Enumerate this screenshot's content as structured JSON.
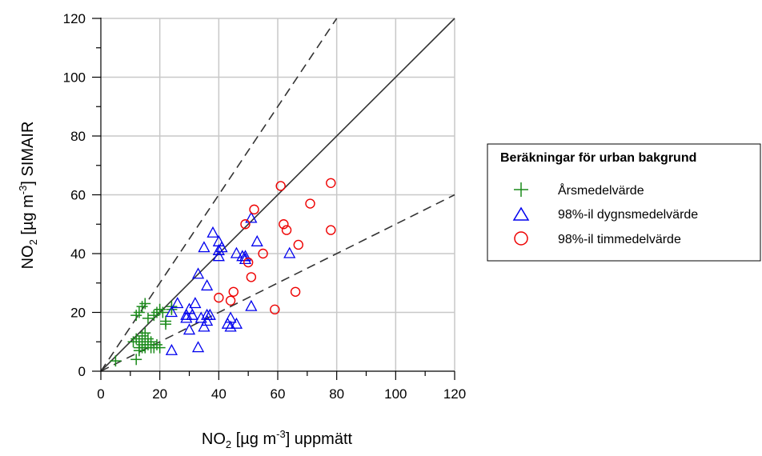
{
  "chart_data": {
    "type": "scatter",
    "xlabel": {
      "main": "NO",
      "sub": "2",
      "unit_pre": " [µg m",
      "sup": "-3",
      "unit_post": "] uppmätt"
    },
    "ylabel": {
      "main": "NO",
      "sub": "2",
      "unit_pre": " [µg m",
      "sup": "-3",
      "unit_post": "] SIMAIR"
    },
    "xlim": [
      0,
      120
    ],
    "ylim": [
      0,
      120
    ],
    "xticks": [
      "0",
      "20",
      "40",
      "60",
      "80",
      "100",
      "120"
    ],
    "yticks": [
      "0",
      "20",
      "40",
      "60",
      "80",
      "100",
      "120"
    ],
    "grid": true,
    "reference_lines": [
      {
        "style": "solid",
        "slope": 1
      },
      {
        "style": "dashed",
        "slope": 1.5
      },
      {
        "style": "dashed",
        "slope": 0.5
      }
    ],
    "legend": {
      "title": "Beräkningar för urban bakgrund",
      "placement": "right",
      "entries": [
        "Årsmedelvärde",
        "98%-il dygnsmedelvärde",
        "98%-il timmedelvärde"
      ]
    },
    "series": [
      {
        "name": "Årsmedelvärde",
        "marker": "plus",
        "color": "#1a8a1a",
        "x": [
          5,
          11,
          12,
          12,
          12,
          13,
          13,
          13,
          13,
          14,
          14,
          14,
          14,
          15,
          15,
          15,
          15,
          16,
          16,
          16,
          17,
          17,
          18,
          18,
          19,
          19,
          20,
          20,
          20,
          21,
          22,
          22,
          24,
          24
        ],
        "y": [
          3.5,
          10,
          4,
          11,
          19,
          20,
          10,
          7,
          8,
          22,
          9,
          12,
          8,
          23,
          10,
          13,
          8,
          18,
          9,
          11,
          10,
          8,
          19,
          8,
          20,
          9,
          21,
          21,
          8,
          20,
          17,
          16,
          21,
          22
        ]
      },
      {
        "name": "98%-il dygnsmedelvärde",
        "marker": "triangle",
        "color": "#0000ee",
        "x": [
          24,
          24,
          26,
          29,
          29,
          30,
          30,
          31,
          32,
          33,
          33,
          34,
          35,
          35,
          36,
          36,
          36,
          37,
          38,
          40,
          40,
          40,
          41,
          43,
          44,
          44,
          46,
          46,
          48,
          49,
          49,
          51,
          51,
          53,
          64
        ],
        "y": [
          7,
          20,
          23,
          18,
          19,
          14,
          21,
          19,
          23,
          8,
          33,
          18,
          15,
          42,
          19,
          29,
          17,
          19,
          47,
          44,
          41,
          39,
          42,
          16,
          15,
          18,
          40,
          16,
          39,
          39,
          38,
          52,
          22,
          44,
          40
        ]
      },
      {
        "name": "98%-il timmedelvärde",
        "marker": "circle",
        "color": "#ee0000",
        "x": [
          40,
          44,
          45,
          49,
          50,
          51,
          52,
          55,
          59,
          61,
          62,
          63,
          66,
          67,
          71,
          78,
          78
        ],
        "y": [
          25,
          24,
          27,
          50,
          37,
          32,
          55,
          40,
          21,
          63,
          50,
          48,
          27,
          43,
          57,
          64,
          48
        ]
      }
    ]
  }
}
